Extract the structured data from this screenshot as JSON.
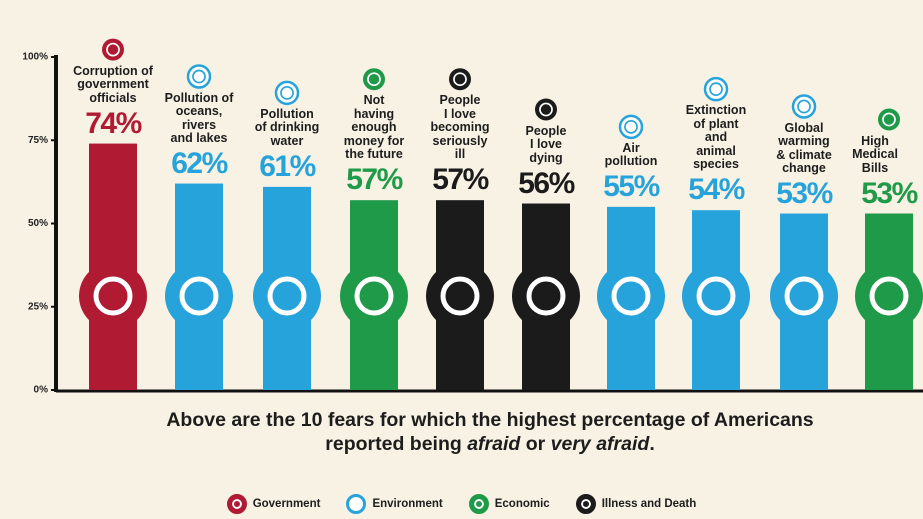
{
  "chart_data": {
    "type": "bar",
    "categories": [
      "Corruption of\ngovernment\nofficials",
      "Pollution of\noceans,\nrivers\nand lakes",
      "Pollution\nof drinking\nwater",
      "Not\nhaving\nenough\nmoney for\nthe future",
      "People\nI love\nbecoming\nseriously\nill",
      "People\nI love\ndying",
      "Air\npollution",
      "Extinction\nof plant\nand\nanimal\nspecies",
      "Global\nwarming\n& climate\nchange",
      "High\nMedical\nBills"
    ],
    "values": [
      74,
      62,
      61,
      57,
      57,
      56,
      55,
      54,
      53,
      53
    ],
    "value_labels": [
      "74%",
      "62%",
      "61%",
      "57%",
      "57%",
      "56%",
      "55%",
      "54%",
      "53%",
      "53%"
    ],
    "bar_groups": [
      0,
      1,
      1,
      2,
      3,
      3,
      1,
      1,
      1,
      2
    ],
    "legend": [
      {
        "name": "Government",
        "color": "#b01a32"
      },
      {
        "name": "Environment",
        "color": "#27a3dc"
      },
      {
        "name": "Economic",
        "color": "#1e9a48"
      },
      {
        "name": "Illness and Death",
        "color": "#1b1b1b"
      }
    ],
    "ylim": [
      0,
      100
    ],
    "yticks": [
      {
        "value": 0,
        "label": "0%"
      },
      {
        "value": 25,
        "label": "25%"
      },
      {
        "value": 50,
        "label": "50%"
      },
      {
        "value": 75,
        "label": "75%"
      },
      {
        "value": 100,
        "label": "100%"
      }
    ],
    "grid": false,
    "note": [
      "Above are the 10 fears for which the highest percentage of Americans reported being ",
      "afraid",
      " or ",
      "very afraid",
      "."
    ]
  }
}
